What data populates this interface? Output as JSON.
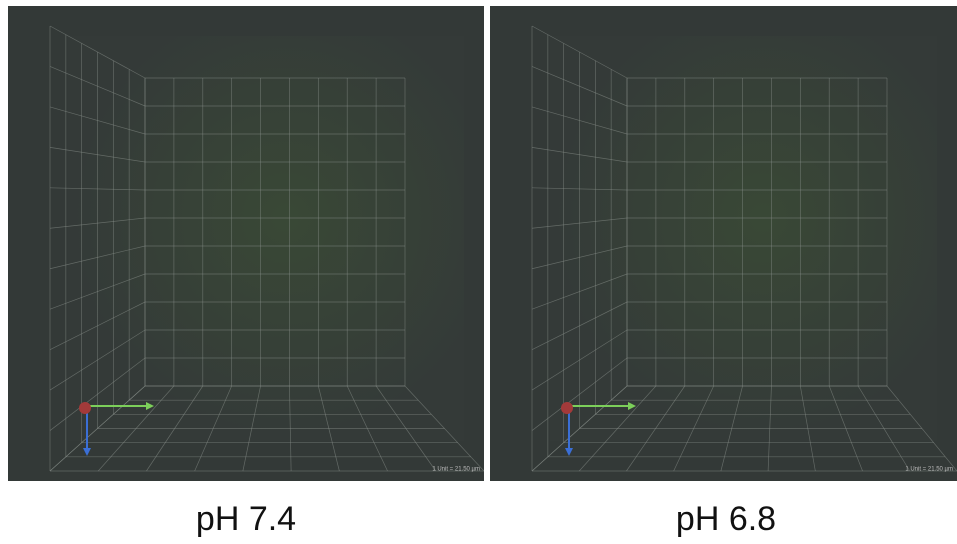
{
  "panels": [
    {
      "label": "pH 7.4",
      "scale_text": "1 Unit = 21.50 µm"
    },
    {
      "label": "pH 6.8",
      "scale_text": "1 Unit = 21.50 µm"
    }
  ]
}
